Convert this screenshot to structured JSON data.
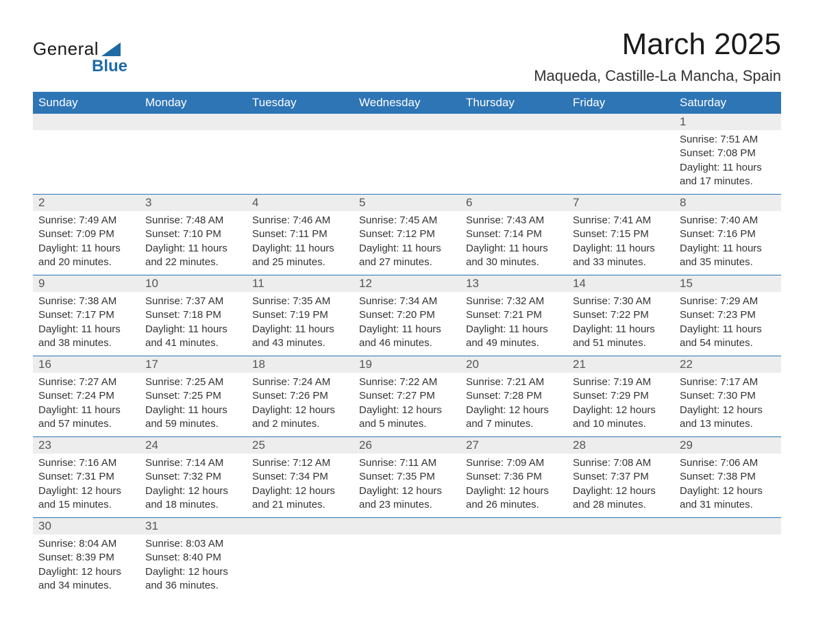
{
  "brand": {
    "top": "General",
    "bottom": "Blue"
  },
  "header": {
    "month_title": "March 2025",
    "location": "Maqueda, Castille-La Mancha, Spain"
  },
  "colors": {
    "header_bg": "#2e75b6",
    "header_text": "#ffffff",
    "daynum_bg": "#ededed",
    "row_divider": "#2e75b6",
    "logo_accent": "#1f6aa5",
    "body_text": "#333333",
    "page_bg": "#ffffff"
  },
  "calendar": {
    "day_labels": [
      "Sunday",
      "Monday",
      "Tuesday",
      "Wednesday",
      "Thursday",
      "Friday",
      "Saturday"
    ],
    "weeks": [
      [
        {
          "n": "",
          "lines": [
            "",
            "",
            "",
            ""
          ]
        },
        {
          "n": "",
          "lines": [
            "",
            "",
            "",
            ""
          ]
        },
        {
          "n": "",
          "lines": [
            "",
            "",
            "",
            ""
          ]
        },
        {
          "n": "",
          "lines": [
            "",
            "",
            "",
            ""
          ]
        },
        {
          "n": "",
          "lines": [
            "",
            "",
            "",
            ""
          ]
        },
        {
          "n": "",
          "lines": [
            "",
            "",
            "",
            ""
          ]
        },
        {
          "n": "1",
          "lines": [
            "Sunrise: 7:51 AM",
            "Sunset: 7:08 PM",
            "Daylight: 11 hours",
            "and 17 minutes."
          ]
        }
      ],
      [
        {
          "n": "2",
          "lines": [
            "Sunrise: 7:49 AM",
            "Sunset: 7:09 PM",
            "Daylight: 11 hours",
            "and 20 minutes."
          ]
        },
        {
          "n": "3",
          "lines": [
            "Sunrise: 7:48 AM",
            "Sunset: 7:10 PM",
            "Daylight: 11 hours",
            "and 22 minutes."
          ]
        },
        {
          "n": "4",
          "lines": [
            "Sunrise: 7:46 AM",
            "Sunset: 7:11 PM",
            "Daylight: 11 hours",
            "and 25 minutes."
          ]
        },
        {
          "n": "5",
          "lines": [
            "Sunrise: 7:45 AM",
            "Sunset: 7:12 PM",
            "Daylight: 11 hours",
            "and 27 minutes."
          ]
        },
        {
          "n": "6",
          "lines": [
            "Sunrise: 7:43 AM",
            "Sunset: 7:14 PM",
            "Daylight: 11 hours",
            "and 30 minutes."
          ]
        },
        {
          "n": "7",
          "lines": [
            "Sunrise: 7:41 AM",
            "Sunset: 7:15 PM",
            "Daylight: 11 hours",
            "and 33 minutes."
          ]
        },
        {
          "n": "8",
          "lines": [
            "Sunrise: 7:40 AM",
            "Sunset: 7:16 PM",
            "Daylight: 11 hours",
            "and 35 minutes."
          ]
        }
      ],
      [
        {
          "n": "9",
          "lines": [
            "Sunrise: 7:38 AM",
            "Sunset: 7:17 PM",
            "Daylight: 11 hours",
            "and 38 minutes."
          ]
        },
        {
          "n": "10",
          "lines": [
            "Sunrise: 7:37 AM",
            "Sunset: 7:18 PM",
            "Daylight: 11 hours",
            "and 41 minutes."
          ]
        },
        {
          "n": "11",
          "lines": [
            "Sunrise: 7:35 AM",
            "Sunset: 7:19 PM",
            "Daylight: 11 hours",
            "and 43 minutes."
          ]
        },
        {
          "n": "12",
          "lines": [
            "Sunrise: 7:34 AM",
            "Sunset: 7:20 PM",
            "Daylight: 11 hours",
            "and 46 minutes."
          ]
        },
        {
          "n": "13",
          "lines": [
            "Sunrise: 7:32 AM",
            "Sunset: 7:21 PM",
            "Daylight: 11 hours",
            "and 49 minutes."
          ]
        },
        {
          "n": "14",
          "lines": [
            "Sunrise: 7:30 AM",
            "Sunset: 7:22 PM",
            "Daylight: 11 hours",
            "and 51 minutes."
          ]
        },
        {
          "n": "15",
          "lines": [
            "Sunrise: 7:29 AM",
            "Sunset: 7:23 PM",
            "Daylight: 11 hours",
            "and 54 minutes."
          ]
        }
      ],
      [
        {
          "n": "16",
          "lines": [
            "Sunrise: 7:27 AM",
            "Sunset: 7:24 PM",
            "Daylight: 11 hours",
            "and 57 minutes."
          ]
        },
        {
          "n": "17",
          "lines": [
            "Sunrise: 7:25 AM",
            "Sunset: 7:25 PM",
            "Daylight: 11 hours",
            "and 59 minutes."
          ]
        },
        {
          "n": "18",
          "lines": [
            "Sunrise: 7:24 AM",
            "Sunset: 7:26 PM",
            "Daylight: 12 hours",
            "and 2 minutes."
          ]
        },
        {
          "n": "19",
          "lines": [
            "Sunrise: 7:22 AM",
            "Sunset: 7:27 PM",
            "Daylight: 12 hours",
            "and 5 minutes."
          ]
        },
        {
          "n": "20",
          "lines": [
            "Sunrise: 7:21 AM",
            "Sunset: 7:28 PM",
            "Daylight: 12 hours",
            "and 7 minutes."
          ]
        },
        {
          "n": "21",
          "lines": [
            "Sunrise: 7:19 AM",
            "Sunset: 7:29 PM",
            "Daylight: 12 hours",
            "and 10 minutes."
          ]
        },
        {
          "n": "22",
          "lines": [
            "Sunrise: 7:17 AM",
            "Sunset: 7:30 PM",
            "Daylight: 12 hours",
            "and 13 minutes."
          ]
        }
      ],
      [
        {
          "n": "23",
          "lines": [
            "Sunrise: 7:16 AM",
            "Sunset: 7:31 PM",
            "Daylight: 12 hours",
            "and 15 minutes."
          ]
        },
        {
          "n": "24",
          "lines": [
            "Sunrise: 7:14 AM",
            "Sunset: 7:32 PM",
            "Daylight: 12 hours",
            "and 18 minutes."
          ]
        },
        {
          "n": "25",
          "lines": [
            "Sunrise: 7:12 AM",
            "Sunset: 7:34 PM",
            "Daylight: 12 hours",
            "and 21 minutes."
          ]
        },
        {
          "n": "26",
          "lines": [
            "Sunrise: 7:11 AM",
            "Sunset: 7:35 PM",
            "Daylight: 12 hours",
            "and 23 minutes."
          ]
        },
        {
          "n": "27",
          "lines": [
            "Sunrise: 7:09 AM",
            "Sunset: 7:36 PM",
            "Daylight: 12 hours",
            "and 26 minutes."
          ]
        },
        {
          "n": "28",
          "lines": [
            "Sunrise: 7:08 AM",
            "Sunset: 7:37 PM",
            "Daylight: 12 hours",
            "and 28 minutes."
          ]
        },
        {
          "n": "29",
          "lines": [
            "Sunrise: 7:06 AM",
            "Sunset: 7:38 PM",
            "Daylight: 12 hours",
            "and 31 minutes."
          ]
        }
      ],
      [
        {
          "n": "30",
          "lines": [
            "Sunrise: 8:04 AM",
            "Sunset: 8:39 PM",
            "Daylight: 12 hours",
            "and 34 minutes."
          ]
        },
        {
          "n": "31",
          "lines": [
            "Sunrise: 8:03 AM",
            "Sunset: 8:40 PM",
            "Daylight: 12 hours",
            "and 36 minutes."
          ]
        },
        {
          "n": "",
          "lines": [
            "",
            "",
            "",
            ""
          ]
        },
        {
          "n": "",
          "lines": [
            "",
            "",
            "",
            ""
          ]
        },
        {
          "n": "",
          "lines": [
            "",
            "",
            "",
            ""
          ]
        },
        {
          "n": "",
          "lines": [
            "",
            "",
            "",
            ""
          ]
        },
        {
          "n": "",
          "lines": [
            "",
            "",
            "",
            ""
          ]
        }
      ]
    ]
  }
}
